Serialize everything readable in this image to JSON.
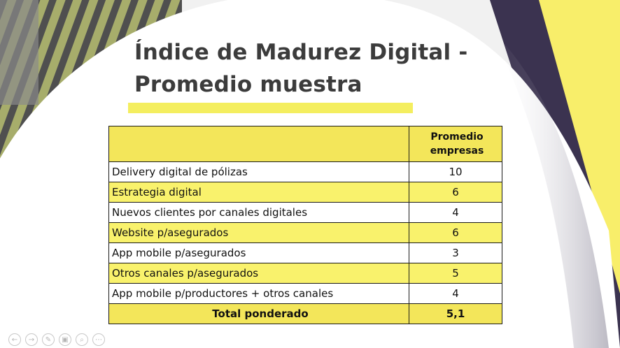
{
  "slide": {
    "title_line1": "Índice de Madurez Digital -",
    "title_line2": "Promedio muestra"
  },
  "table": {
    "header": {
      "col1": "",
      "col2_line1": "Promedio",
      "col2_line2": "empresas"
    },
    "rows": [
      {
        "label": "Delivery digital de pólizas",
        "value": "10"
      },
      {
        "label": "Estrategia digital",
        "value": "6"
      },
      {
        "label": "Nuevos clientes por canales digitales",
        "value": "4"
      },
      {
        "label": "Website p/asegurados",
        "value": "6"
      },
      {
        "label": "App mobile p/asegurados",
        "value": "3"
      },
      {
        "label": "Otros canales p/asegurados",
        "value": "5"
      },
      {
        "label": "App mobile p/productores + otros canales",
        "value": "4"
      }
    ],
    "total": {
      "label": "Total ponderado",
      "value": "5,1"
    }
  },
  "controls": [
    {
      "icon": "back-arrow-icon",
      "glyph": "←"
    },
    {
      "icon": "forward-arrow-icon",
      "glyph": "→"
    },
    {
      "icon": "pen-icon",
      "glyph": "✎"
    },
    {
      "icon": "slides-icon",
      "glyph": "▣"
    },
    {
      "icon": "zoom-icon",
      "glyph": "⌕"
    },
    {
      "icon": "more-icon",
      "glyph": "⋯"
    }
  ],
  "colors": {
    "accent_yellow": "#f4ee5f",
    "highlight_row": "#f9f26c",
    "title_text": "#3c3c3c",
    "stripe_green": "#a7ad6b"
  }
}
